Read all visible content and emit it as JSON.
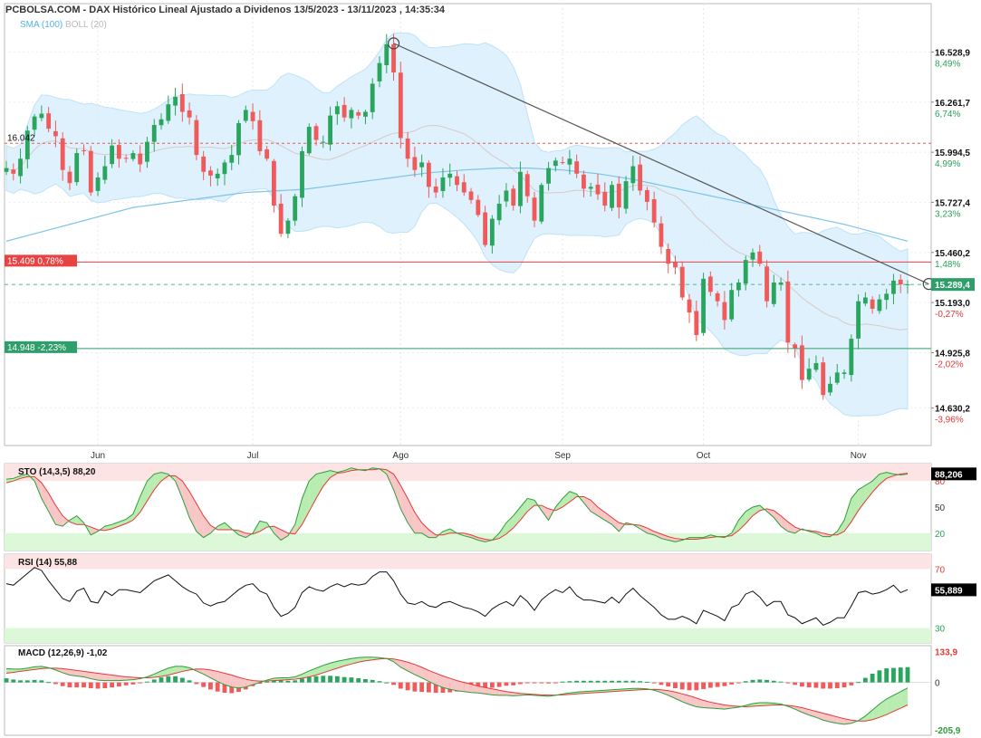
{
  "header": {
    "title": "PCBOLSA.COM - DAX Histórico Lineal Ajustado a Dividenos 13/5/2023 - 13/11/2023 , 14:35:34",
    "sma_label": "SMA (100)",
    "boll_label": "BOLL (20)"
  },
  "chart_data": {
    "type": "candlestick",
    "title": "PCBOLSA.COM - DAX Histórico Lineal Ajustado a Dividenos 13/5/2023 - 13/11/2023 , 14:35:34",
    "indicators": [
      "SMA (100)",
      "BOLL (20)"
    ],
    "ylim": [
      14450,
      16700
    ],
    "price_ticks": [
      {
        "value": 16528.9,
        "label": "16.528,9",
        "pct": "8,49%"
      },
      {
        "value": 16261.7,
        "label": "16.261,7",
        "pct": "6,74%"
      },
      {
        "value": 15994.5,
        "label": "15.994,5",
        "pct": "4,99%"
      },
      {
        "value": 15727.4,
        "label": "15.727,4",
        "pct": "3,23%"
      },
      {
        "value": 15460.2,
        "label": "15.460,2",
        "pct": "1,48%"
      },
      {
        "value": 15193.0,
        "label": "15.193,0",
        "pct": "-0,27%"
      },
      {
        "value": 14925.8,
        "label": "14.925,8",
        "pct": "-2,02%"
      },
      {
        "value": 14630.2,
        "label": "14.630,2",
        "pct": "-3,96%"
      }
    ],
    "months": [
      {
        "label": "Jun",
        "index": 13
      },
      {
        "label": "Jul",
        "index": 35
      },
      {
        "label": "Ago",
        "index": 56
      },
      {
        "label": "Sep",
        "index": 79
      },
      {
        "label": "Oct",
        "index": 99
      },
      {
        "label": "Nov",
        "index": 121
      }
    ],
    "levels": [
      {
        "value": 16042,
        "label": "16.042",
        "color": "#e05c5c",
        "style": "dashed"
      },
      {
        "value": 15409,
        "label": "15.409  0,78%",
        "color": "#e84343",
        "style": "solid"
      },
      {
        "value": 14948,
        "label": "14.948  -2,23%",
        "color": "#2e9e6b",
        "style": "solid"
      }
    ],
    "last_price": {
      "value": 15289.4,
      "label": "15.289,4"
    },
    "trendline": {
      "from_index": 55,
      "from_value": 16575,
      "to_index": 131,
      "to_value": 15292
    },
    "closes": [
      15910,
      15880,
      15960,
      16110,
      16185,
      16200,
      16120,
      16080,
      15900,
      15830,
      15990,
      16000,
      15780,
      15860,
      15920,
      16030,
      15960,
      15960,
      15990,
      15930,
      16050,
      16140,
      16170,
      16250,
      16290,
      16210,
      16180,
      15980,
      15890,
      15870,
      15880,
      15940,
      15980,
      16150,
      16220,
      16160,
      16000,
      15960,
      15710,
      15560,
      15630,
      15760,
      16000,
      16130,
      16060,
      16050,
      16190,
      16240,
      16180,
      16220,
      16190,
      16210,
      16360,
      16470,
      16570,
      16420,
      16070,
      15960,
      15900,
      15940,
      15810,
      15780,
      15860,
      15880,
      15820,
      15780,
      15740,
      15660,
      15500,
      15640,
      15720,
      15790,
      15710,
      15890,
      15760,
      15630,
      15820,
      15910,
      15950,
      15940,
      15960,
      15880,
      15800,
      15810,
      15770,
      15710,
      15820,
      15700,
      15840,
      15920,
      15790,
      15730,
      15620,
      15490,
      15400,
      15380,
      15220,
      15140,
      15020,
      15320,
      15250,
      15200,
      15100,
      15260,
      15300,
      15420,
      15460,
      15400,
      15200,
      15300,
      15300,
      14980,
      14950,
      14780,
      14840,
      14870,
      14700,
      14760,
      14820,
      14820,
      15000,
      15200,
      15220,
      15160,
      15210,
      15240,
      15310,
      15290,
      15290
    ],
    "sma100": [
      15520,
      15530,
      15540,
      15550,
      15560,
      15570,
      15580,
      15590,
      15600,
      15610,
      15620,
      15630,
      15640,
      15650,
      15660,
      15670,
      15680,
      15690,
      15700,
      15705,
      15710,
      15715,
      15720,
      15725,
      15730,
      15735,
      15740,
      15745,
      15750,
      15755,
      15760,
      15765,
      15770,
      15775,
      15780,
      15782,
      15784,
      15786,
      15788,
      15790,
      15792,
      15794,
      15796,
      15800,
      15805,
      15810,
      15815,
      15820,
      15825,
      15830,
      15835,
      15840,
      15845,
      15850,
      15855,
      15860,
      15865,
      15870,
      15875,
      15880,
      15885,
      15888,
      15891,
      15894,
      15897,
      15900,
      15902,
      15904,
      15906,
      15908,
      15910,
      15910,
      15910,
      15910,
      15910,
      15908,
      15906,
      15904,
      15902,
      15900,
      15896,
      15892,
      15888,
      15884,
      15880,
      15874,
      15868,
      15862,
      15856,
      15850,
      15842,
      15834,
      15826,
      15818,
      15810,
      15802,
      15794,
      15786,
      15778,
      15770,
      15762,
      15754,
      15746,
      15738,
      15730,
      15722,
      15714,
      15706,
      15698,
      15690,
      15682,
      15674,
      15666,
      15658,
      15650,
      15642,
      15634,
      15626,
      15618,
      15610,
      15600,
      15590,
      15580,
      15570,
      15560,
      15550,
      15540,
      15530,
      15520
    ],
    "stoch": {
      "name": "STO (14,3,5)",
      "value": "88,20",
      "last_label": "88,206",
      "levels": [
        20,
        50,
        80
      ],
      "ylim": [
        0,
        100
      ],
      "k": [
        82,
        83,
        86,
        88,
        80,
        60,
        45,
        30,
        28,
        35,
        40,
        32,
        18,
        22,
        28,
        30,
        33,
        36,
        42,
        62,
        80,
        88,
        90,
        88,
        80,
        60,
        38,
        22,
        15,
        20,
        28,
        32,
        25,
        18,
        15,
        20,
        34,
        32,
        20,
        12,
        17,
        30,
        60,
        80,
        88,
        90,
        92,
        90,
        92,
        95,
        93,
        92,
        95,
        94,
        88,
        70,
        48,
        32,
        20,
        20,
        15,
        15,
        22,
        25,
        20,
        17,
        15,
        12,
        10,
        12,
        20,
        32,
        40,
        50,
        60,
        58,
        46,
        35,
        50,
        60,
        68,
        65,
        55,
        45,
        40,
        35,
        30,
        22,
        32,
        30,
        25,
        20,
        18,
        14,
        12,
        10,
        12,
        15,
        15,
        15,
        18,
        16,
        15,
        20,
        35,
        45,
        50,
        52,
        45,
        38,
        28,
        22,
        20,
        25,
        22,
        20,
        16,
        16,
        22,
        35,
        60,
        70,
        75,
        80,
        88,
        90,
        88,
        87,
        88
      ],
      "d": [
        78,
        80,
        83,
        85,
        85,
        78,
        66,
        52,
        40,
        33,
        30,
        30,
        27,
        24,
        23,
        25,
        28,
        31,
        35,
        44,
        57,
        70,
        80,
        86,
        86,
        80,
        68,
        54,
        40,
        29,
        24,
        24,
        24,
        23,
        20,
        19,
        22,
        27,
        28,
        24,
        20,
        19,
        30,
        45,
        60,
        74,
        84,
        89,
        90,
        92,
        93,
        93,
        93,
        94,
        93,
        88,
        75,
        60,
        44,
        32,
        24,
        18,
        18,
        20,
        20,
        20,
        18,
        15,
        13,
        12,
        14,
        19,
        26,
        35,
        45,
        52,
        52,
        48,
        46,
        50,
        56,
        62,
        62,
        58,
        50,
        44,
        38,
        32,
        30,
        30,
        29,
        26,
        22,
        19,
        16,
        14,
        13,
        13,
        13,
        14,
        15,
        16,
        16,
        17,
        23,
        31,
        40,
        46,
        48,
        46,
        40,
        33,
        27,
        24,
        23,
        22,
        20,
        18,
        18,
        22,
        33,
        46,
        57,
        67,
        76,
        83,
        86,
        88,
        89
      ]
    },
    "rsi": {
      "name": "RSI (14)",
      "value": "55,88",
      "last_label": "55,889",
      "levels": [
        30,
        70
      ],
      "ylim": [
        20,
        80
      ],
      "values": [
        60,
        59,
        63,
        67,
        71,
        69,
        62,
        56,
        50,
        48,
        55,
        57,
        48,
        47,
        55,
        52,
        56,
        56,
        55,
        54,
        58,
        62,
        64,
        66,
        62,
        58,
        55,
        53,
        47,
        45,
        47,
        48,
        52,
        56,
        59,
        60,
        55,
        53,
        44,
        38,
        40,
        44,
        54,
        58,
        56,
        55,
        58,
        60,
        58,
        60,
        59,
        60,
        65,
        68,
        68,
        62,
        53,
        47,
        46,
        48,
        45,
        44,
        47,
        48,
        46,
        44,
        43,
        41,
        38,
        43,
        46,
        48,
        45,
        52,
        48,
        42,
        49,
        53,
        56,
        54,
        58,
        52,
        49,
        49,
        48,
        47,
        51,
        47,
        53,
        57,
        52,
        48,
        44,
        39,
        36,
        36,
        38,
        36,
        33,
        42,
        40,
        38,
        35,
        44,
        46,
        53,
        55,
        51,
        45,
        48,
        48,
        39,
        37,
        33,
        35,
        37,
        32,
        34,
        37,
        37,
        45,
        54,
        55,
        53,
        54,
        56,
        59,
        54,
        56
      ]
    },
    "macd": {
      "name": "MACD (12,26,9)",
      "value": "-1,02",
      "ticks": [
        {
          "value": 133.9,
          "label": "133,9"
        },
        {
          "value": 0,
          "label": "0"
        },
        {
          "value": -205.9,
          "label": "-205,9"
        }
      ],
      "ylim": [
        -230,
        160
      ],
      "macd": [
        60,
        58,
        58,
        62,
        68,
        70,
        64,
        54,
        42,
        32,
        28,
        24,
        16,
        10,
        8,
        8,
        8,
        10,
        12,
        16,
        24,
        36,
        50,
        62,
        70,
        70,
        64,
        50,
        36,
        20,
        4,
        -10,
        -20,
        -24,
        -20,
        -10,
        0,
        10,
        18,
        20,
        20,
        24,
        36,
        50,
        62,
        74,
        84,
        92,
        98,
        104,
        108,
        110,
        110,
        108,
        104,
        90,
        66,
        50,
        34,
        20,
        4,
        -10,
        -22,
        -30,
        -36,
        -40,
        -44,
        -46,
        -50,
        -54,
        -56,
        -56,
        -58,
        -56,
        -54,
        -56,
        -58,
        -60,
        -56,
        -50,
        -46,
        -42,
        -40,
        -38,
        -36,
        -34,
        -32,
        -30,
        -28,
        -26,
        -26,
        -28,
        -34,
        -44,
        -56,
        -70,
        -84,
        -96,
        -106,
        -110,
        -112,
        -114,
        -116,
        -112,
        -108,
        -100,
        -92,
        -88,
        -88,
        -90,
        -94,
        -104,
        -116,
        -130,
        -142,
        -152,
        -164,
        -172,
        -178,
        -182,
        -178,
        -166,
        -146,
        -120,
        -94,
        -72,
        -56,
        -40,
        -24
      ],
      "signal": [
        40,
        44,
        48,
        52,
        56,
        60,
        62,
        62,
        60,
        56,
        52,
        48,
        44,
        40,
        36,
        32,
        28,
        24,
        22,
        20,
        20,
        22,
        26,
        32,
        40,
        48,
        54,
        58,
        58,
        54,
        48,
        40,
        32,
        22,
        14,
        8,
        6,
        6,
        8,
        10,
        12,
        14,
        18,
        24,
        32,
        42,
        52,
        62,
        72,
        80,
        88,
        94,
        98,
        102,
        104,
        102,
        96,
        88,
        78,
        66,
        52,
        40,
        28,
        18,
        8,
        0,
        -8,
        -16,
        -22,
        -28,
        -34,
        -40,
        -44,
        -48,
        -50,
        -52,
        -54,
        -55,
        -55,
        -54,
        -52,
        -50,
        -48,
        -46,
        -44,
        -42,
        -40,
        -38,
        -36,
        -34,
        -32,
        -31,
        -30,
        -32,
        -36,
        -42,
        -50,
        -58,
        -68,
        -78,
        -86,
        -92,
        -98,
        -102,
        -104,
        -106,
        -104,
        -102,
        -100,
        -98,
        -98,
        -100,
        -104,
        -110,
        -118,
        -126,
        -134,
        -142,
        -150,
        -158,
        -164,
        -168,
        -168,
        -162,
        -152,
        -140,
        -126,
        -112,
        -98
      ]
    }
  }
}
